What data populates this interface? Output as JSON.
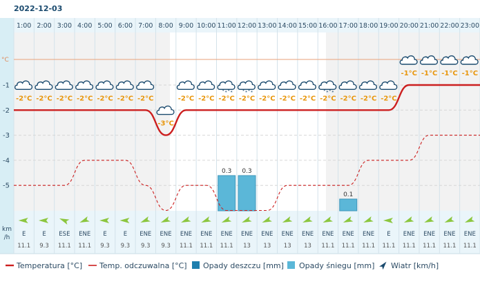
{
  "date": "2022-12-03",
  "chart_data": {
    "type": "line",
    "hours": [
      "1:00",
      "2:00",
      "3:00",
      "4:00",
      "5:00",
      "6:00",
      "7:00",
      "8:00",
      "9:00",
      "10:00",
      "11:00",
      "12:00",
      "13:00",
      "14:00",
      "15:00",
      "16:00",
      "17:00",
      "18:00",
      "19:00",
      "20:00",
      "21:00",
      "22:00",
      "23:00"
    ],
    "y_unit": "°C",
    "y_ticks": [
      -1,
      -2,
      -3,
      -4,
      -5
    ],
    "temperature": [
      -2,
      -2,
      -2,
      -2,
      -2,
      -2,
      -2,
      -3,
      -2,
      -2,
      -2,
      -2,
      -2,
      -2,
      -2,
      -2,
      -2,
      -2,
      -2,
      -1,
      -1,
      -1,
      -1
    ],
    "temperature_labels": [
      "-2°C",
      "-2°C",
      "-2°C",
      "-2°C",
      "-2°C",
      "-2°C",
      "-2°C",
      "-3°C",
      "-2°C",
      "-2°C",
      "-2°C",
      "-2°C",
      "-2°C",
      "-2°C",
      "-2°C",
      "-2°C",
      "-2°C",
      "-2°C",
      "-2°C",
      "-1°C",
      "-1°C",
      "-1°C",
      "-1°C"
    ],
    "feels_like": [
      -5,
      -5,
      -5,
      -4,
      -4,
      -4,
      -5,
      -6,
      -5,
      -5,
      -6,
      -6,
      -6,
      -5,
      -5,
      -5,
      -5,
      -4,
      -4,
      -4,
      -3,
      -3,
      -3
    ],
    "rain": [
      0,
      0,
      0,
      0,
      0,
      0,
      0,
      0,
      0,
      0,
      0,
      0,
      0,
      0,
      0,
      0,
      0,
      0,
      0,
      0,
      0,
      0,
      0
    ],
    "snow": [
      0,
      0,
      0,
      0,
      0,
      0,
      0,
      0,
      0,
      0,
      0.3,
      0.3,
      0,
      0,
      0,
      0,
      0.1,
      0,
      0,
      0,
      0,
      0,
      0
    ],
    "snow_labels": [
      "",
      "",
      "",
      "",
      "",
      "",
      "",
      "",
      "",
      "",
      "0.3",
      "0.3",
      "",
      "",
      "",
      "",
      "0.1",
      "",
      "",
      "",
      "",
      "",
      ""
    ],
    "weather_icons": [
      "cloud-icon",
      "cloud-icon",
      "cloud-icon",
      "cloud-icon",
      "cloud-icon",
      "cloud-icon",
      "cloud-icon",
      "cloud-icon",
      "cloud-icon",
      "cloud-icon",
      "cloud-snow-icon",
      "cloud-snow-icon",
      "cloud-icon",
      "cloud-icon",
      "cloud-icon",
      "cloud-snow-icon",
      "cloud-icon",
      "cloud-icon",
      "cloud-icon",
      "cloud-icon",
      "cloud-icon",
      "cloud-icon",
      "cloud-icon"
    ],
    "wind_direction": [
      "E",
      "E",
      "ESE",
      "ENE",
      "E",
      "E",
      "ENE",
      "ENE",
      "ENE",
      "ENE",
      "ENE",
      "ENE",
      "ENE",
      "ENE",
      "ENE",
      "ENE",
      "ENE",
      "ENE",
      "E",
      "ENE",
      "ENE",
      "ENE",
      "ENE"
    ],
    "wind_speed": [
      "11.1",
      "9.3",
      "11.1",
      "11.1",
      "9.3",
      "9.3",
      "9.3",
      "9.3",
      "11.1",
      "11.1",
      "11.1",
      "13",
      "13",
      "13",
      "13",
      "11.1",
      "11.1",
      "11.1",
      "11.1",
      "11.1",
      "11.1",
      "11.1",
      "11.1"
    ],
    "wind_unit_line1": "km",
    "wind_unit_line2": "/h",
    "legend": {
      "temperature": "Temperatura [°C]",
      "feels_like": "Temp. odczuwalna [°C]",
      "rain": "Opady deszczu [mm]",
      "snow": "Opady śniegu [mm]",
      "wind": "Wiatr [km/h]"
    },
    "colors": {
      "temperature": "#cc1f1f",
      "feels_like": "#cc1f1f",
      "rain": "#1f7fae",
      "snow": "#5bb7d8",
      "wind_arrow": "#8cc63f",
      "wind_legend_arrow": "#1a4a6e"
    }
  }
}
